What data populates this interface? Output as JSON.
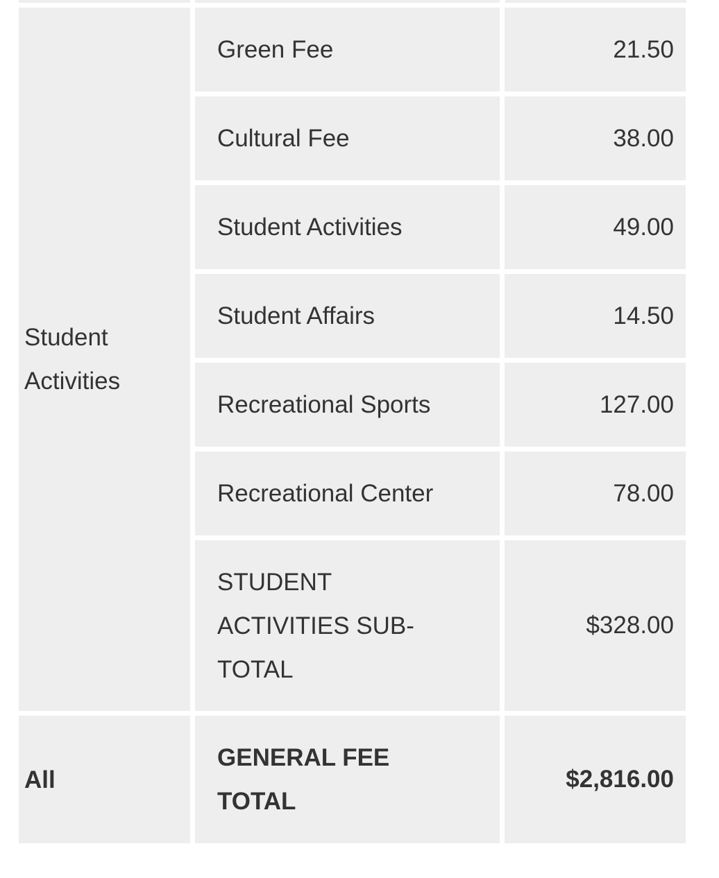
{
  "group": "Student Activities",
  "rows": [
    {
      "name": "Green Fee",
      "amount": "21.50"
    },
    {
      "name": "Cultural Fee",
      "amount": "38.00"
    },
    {
      "name": "Student Activities",
      "amount": "49.00"
    },
    {
      "name": "Student Affairs",
      "amount": "14.50"
    },
    {
      "name": "Recreational Sports",
      "amount": "127.00"
    },
    {
      "name": "Recreational Center",
      "amount": "78.00"
    }
  ],
  "subtotal": {
    "name": "STUDENT ACTIVITIES SUB-TOTAL",
    "amount": "$328.00"
  },
  "total": {
    "group": "All",
    "name": "GENERAL FEE TOTAL",
    "amount": "$2,816.00"
  }
}
